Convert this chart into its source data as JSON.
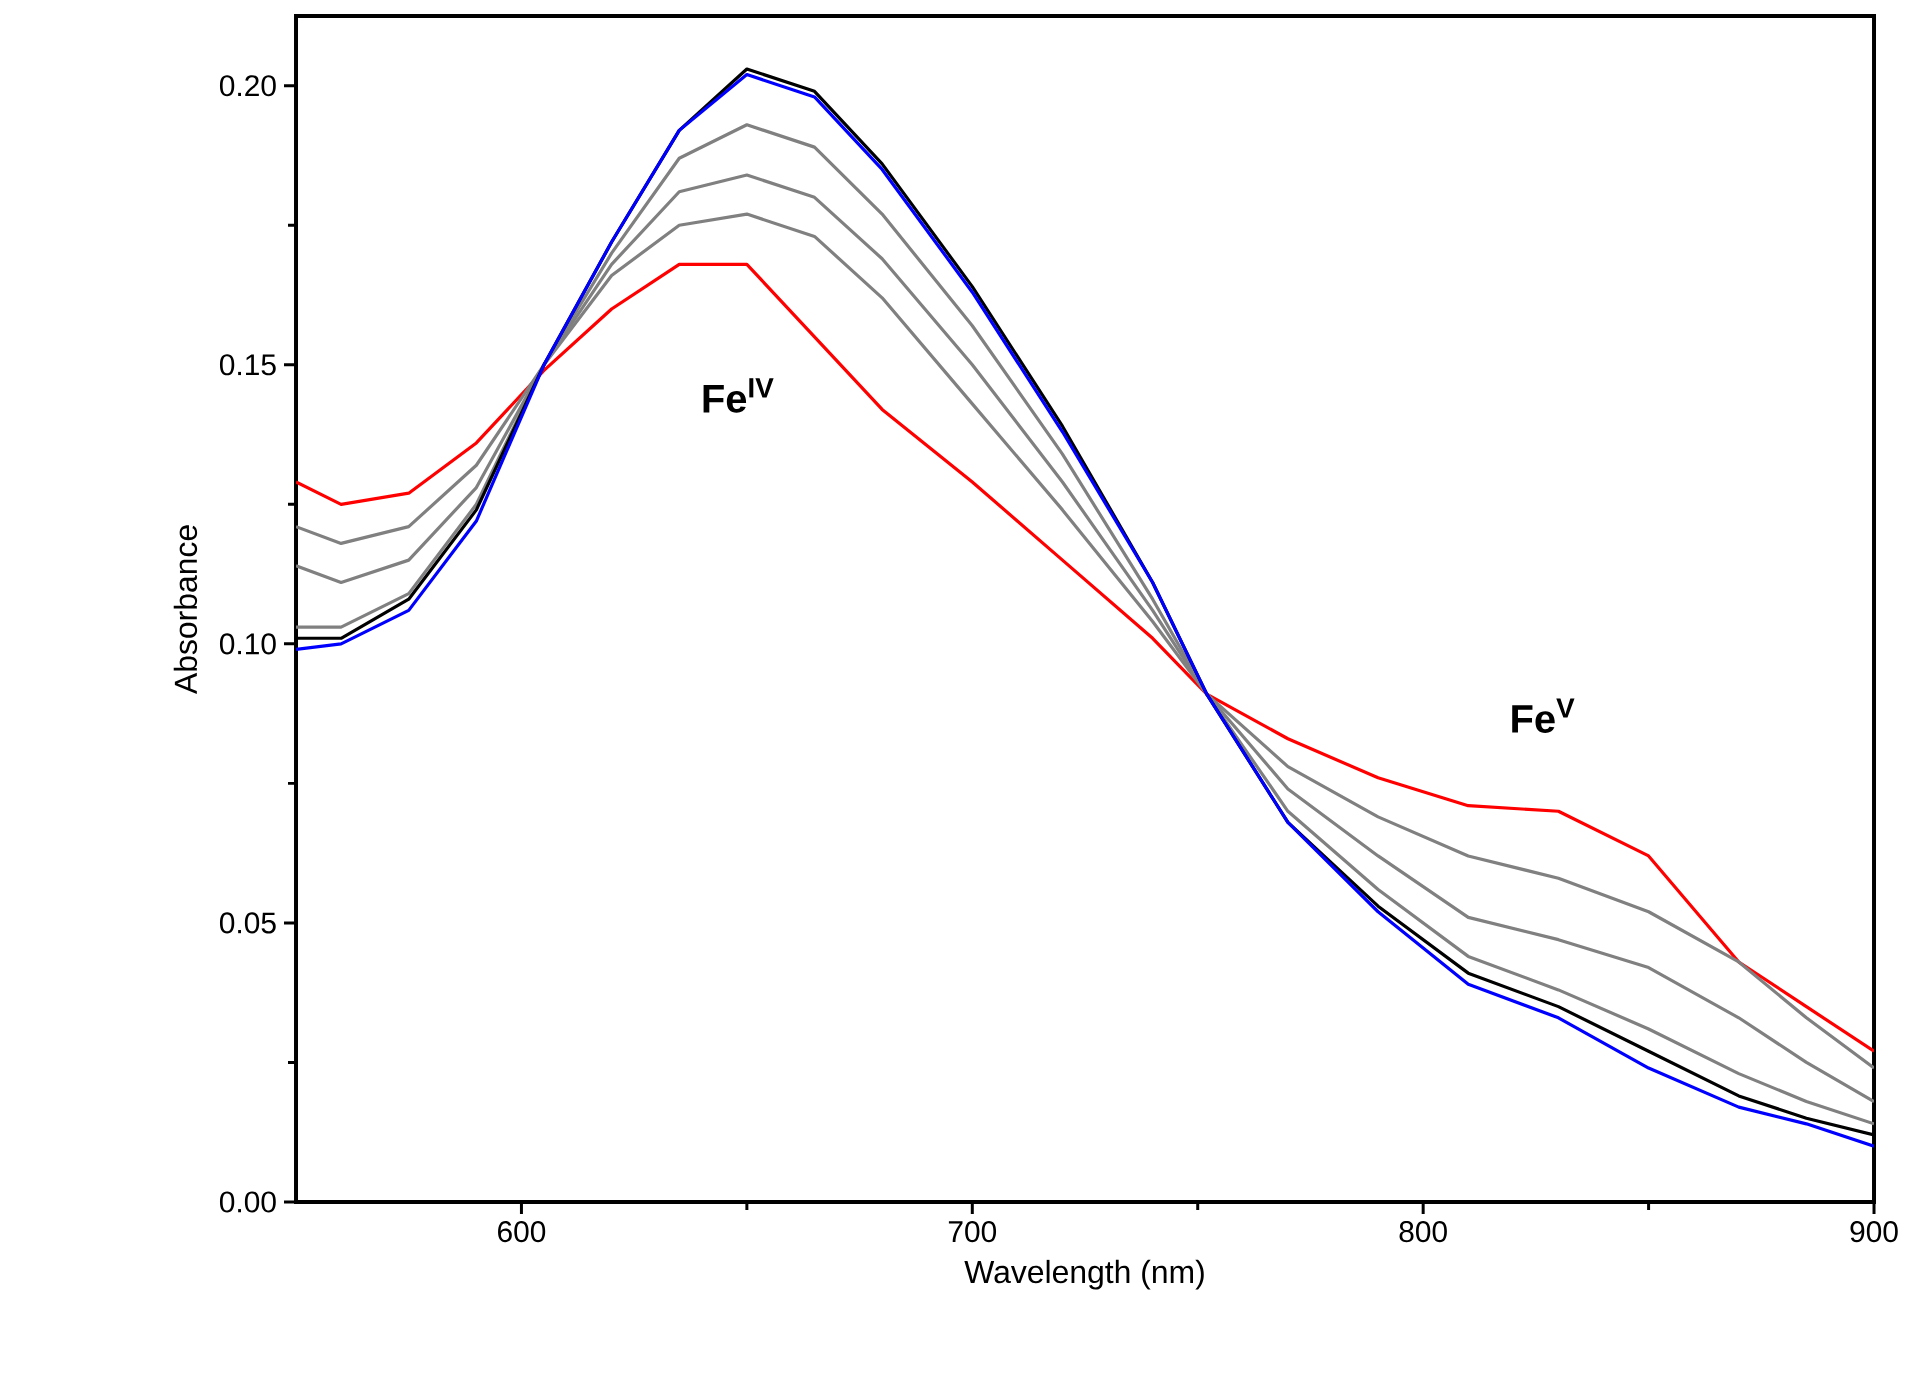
{
  "chart_data": {
    "type": "line",
    "xlabel": "Wavelength (nm)",
    "ylabel": "Absorbance",
    "x": [
      550,
      560,
      575,
      590,
      605,
      620,
      635,
      650,
      665,
      680,
      700,
      720,
      740,
      752,
      770,
      790,
      810,
      830,
      850,
      870,
      885,
      900
    ],
    "series": [
      {
        "color": "#ff0000",
        "values": [
          0.129,
          0.125,
          0.127,
          0.136,
          0.149,
          0.16,
          0.168,
          0.168,
          0.155,
          0.142,
          0.129,
          0.115,
          0.101,
          0.091,
          0.083,
          0.076,
          0.071,
          0.07,
          0.062,
          0.043,
          0.035,
          0.027
        ]
      },
      {
        "color": "#808080",
        "values": [
          0.121,
          0.118,
          0.121,
          0.132,
          0.15,
          0.166,
          0.175,
          0.177,
          0.173,
          0.162,
          0.143,
          0.124,
          0.104,
          0.091,
          0.078,
          0.069,
          0.062,
          0.058,
          0.052,
          0.043,
          0.033,
          0.024
        ]
      },
      {
        "color": "#808080",
        "values": [
          0.114,
          0.111,
          0.115,
          0.128,
          0.15,
          0.168,
          0.181,
          0.184,
          0.18,
          0.169,
          0.15,
          0.129,
          0.106,
          0.091,
          0.074,
          0.062,
          0.051,
          0.047,
          0.042,
          0.033,
          0.025,
          0.018
        ]
      },
      {
        "color": "#808080",
        "values": [
          0.103,
          0.103,
          0.109,
          0.125,
          0.15,
          0.17,
          0.187,
          0.193,
          0.189,
          0.177,
          0.157,
          0.134,
          0.108,
          0.091,
          0.07,
          0.056,
          0.044,
          0.038,
          0.031,
          0.023,
          0.018,
          0.014
        ]
      },
      {
        "color": "#000000",
        "values": [
          0.101,
          0.101,
          0.108,
          0.124,
          0.15,
          0.172,
          0.192,
          0.203,
          0.199,
          0.186,
          0.164,
          0.139,
          0.111,
          0.091,
          0.068,
          0.053,
          0.041,
          0.035,
          0.027,
          0.019,
          0.015,
          0.012
        ]
      },
      {
        "color": "#0000ff",
        "values": [
          0.099,
          0.1,
          0.106,
          0.122,
          0.15,
          0.172,
          0.192,
          0.202,
          0.198,
          0.185,
          0.163,
          0.138,
          0.111,
          0.091,
          0.068,
          0.052,
          0.039,
          0.033,
          0.024,
          0.017,
          0.014,
          0.01
        ]
      }
    ],
    "xlim": [
      550,
      900
    ],
    "xticks": [
      600,
      700,
      800,
      900
    ],
    "ylim": [
      0,
      0.2125
    ],
    "yticks": [
      {
        "value": 0,
        "label": "0.00"
      },
      {
        "value": 0.05,
        "label": "0.05"
      },
      {
        "value": 0.1,
        "label": "0.10"
      },
      {
        "value": 0.15,
        "label": "0.15"
      },
      {
        "value": 0.2,
        "label": "0.20"
      }
    ],
    "marker": "none",
    "line_style": "solid",
    "annotations": [
      "Fe$^{IV}$",
      "Fe$^{V}$"
    ]
  }
}
